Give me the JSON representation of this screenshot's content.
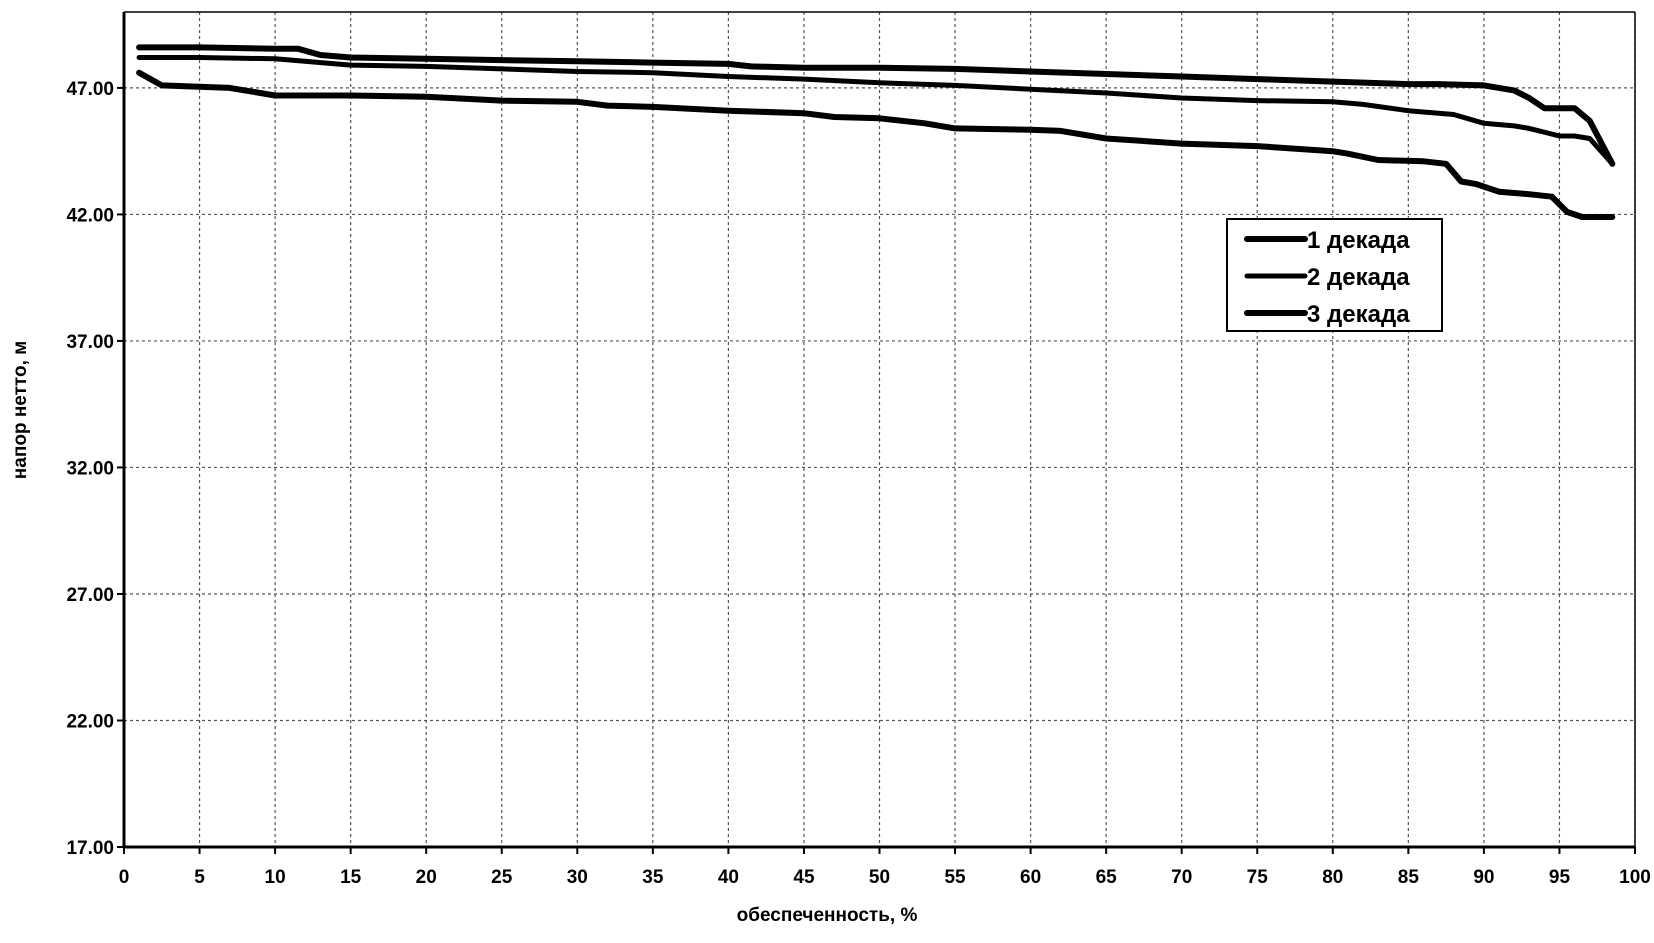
{
  "chart_data": {
    "type": "line",
    "title": "",
    "xlabel": "обеспеченность, %",
    "ylabel": "напор нетто, м",
    "xlim": [
      0,
      100
    ],
    "ylim": [
      17,
      50
    ],
    "x_ticks": [
      "0",
      "5",
      "10",
      "15",
      "20",
      "25",
      "30",
      "35",
      "40",
      "45",
      "50",
      "55",
      "60",
      "65",
      "70",
      "75",
      "80",
      "85",
      "90",
      "95",
      "100"
    ],
    "y_ticks": [
      "17.00",
      "22.00",
      "27.00",
      "32.00",
      "37.00",
      "42.00",
      "47.00"
    ],
    "grid": true,
    "legend_position": "center-right",
    "series": [
      {
        "name": "1 декада",
        "x": [
          1,
          5,
          10,
          11.5,
          13,
          15,
          20,
          25,
          30,
          35,
          40,
          41.5,
          45,
          50,
          55,
          60,
          65,
          70,
          75,
          80,
          85,
          87,
          90,
          92,
          93,
          94,
          95,
          96,
          97,
          98.5
        ],
        "y": [
          48.6,
          48.6,
          48.55,
          48.55,
          48.3,
          48.2,
          48.15,
          48.1,
          48.05,
          48.0,
          47.95,
          47.85,
          47.8,
          47.8,
          47.75,
          47.65,
          47.55,
          47.45,
          47.35,
          47.25,
          47.15,
          47.15,
          47.1,
          46.9,
          46.6,
          46.2,
          46.2,
          46.2,
          45.7,
          44.0
        ]
      },
      {
        "name": "2 декада",
        "x": [
          1,
          5,
          10,
          15,
          20,
          25,
          30,
          35,
          40,
          45,
          50,
          55,
          60,
          65,
          70,
          75,
          80,
          82,
          85,
          88,
          90,
          92,
          93,
          95,
          96,
          97,
          98.5
        ],
        "y": [
          48.2,
          48.2,
          48.15,
          47.9,
          47.85,
          47.75,
          47.65,
          47.6,
          47.45,
          47.35,
          47.2,
          47.1,
          46.95,
          46.8,
          46.6,
          46.5,
          46.45,
          46.35,
          46.1,
          45.95,
          45.6,
          45.5,
          45.4,
          45.1,
          45.1,
          45.0,
          44.0
        ]
      },
      {
        "name": "3 декада",
        "x": [
          1,
          2.5,
          7,
          10,
          15,
          20,
          25,
          30,
          32,
          35,
          40,
          45,
          47,
          50,
          53,
          55,
          60,
          62,
          65,
          70,
          75,
          80,
          81,
          83,
          86,
          87.5,
          88.5,
          89.5,
          91,
          93,
          94.5,
          95.5,
          96.5,
          98.5
        ],
        "y": [
          47.6,
          47.1,
          47.0,
          46.7,
          46.7,
          46.65,
          46.5,
          46.45,
          46.3,
          46.25,
          46.1,
          46.0,
          45.85,
          45.8,
          45.6,
          45.4,
          45.35,
          45.3,
          45.0,
          44.8,
          44.7,
          44.5,
          44.4,
          44.15,
          44.1,
          44.0,
          43.3,
          43.2,
          42.9,
          42.8,
          42.7,
          42.1,
          41.9,
          41.9
        ]
      }
    ]
  }
}
